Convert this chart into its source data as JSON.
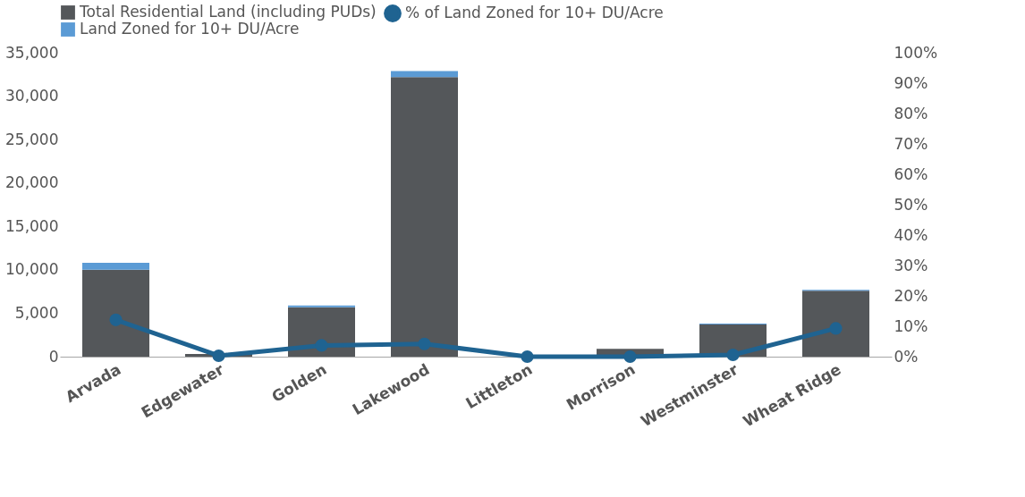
{
  "chart_data": {
    "type": "bar",
    "stacked": true,
    "legend": "top",
    "grid": false,
    "marker": "circle",
    "line_style": "solid",
    "categories": [
      "Arvada",
      "Edgewater",
      "Golden",
      "Lakewood",
      "Littleton",
      "Morrison",
      "Westminster",
      "Wheat Ridge"
    ],
    "series": [
      {
        "name": "Total Residential Land (including PUDs)",
        "color": "#54575a",
        "values": [
          10000,
          300,
          5700,
          32200,
          0,
          900,
          3700,
          7600
        ]
      },
      {
        "name": "Land Zoned for 10+ DU/Acre",
        "color": "#5b9bd5",
        "values": [
          800,
          null,
          200,
          700,
          0,
          0,
          100,
          100
        ]
      },
      {
        "name": "% of Land Zoned for 10+ DU/Acre",
        "type": "line",
        "axis": "y2",
        "color": "#1f6391",
        "values": [
          12.1,
          0.3,
          3.7,
          4.2,
          0,
          0,
          0.6,
          9.3
        ]
      }
    ],
    "ylim": [
      0,
      35000
    ],
    "yticks": [
      0,
      {
        "value": 5000,
        "label": "5,000"
      },
      {
        "value": 10000,
        "label": "10,000"
      },
      {
        "value": 15000,
        "label": "15,000"
      },
      {
        "value": 20000,
        "label": "20,000"
      },
      {
        "value": 25000,
        "label": "25,000"
      },
      {
        "value": 30000,
        "label": "30,000"
      },
      {
        "value": 35000,
        "label": "35,000"
      }
    ],
    "y2lim": [
      0,
      100
    ],
    "y2ticks": [
      {
        "value": 0,
        "label": "0%"
      },
      {
        "value": 10,
        "label": "10%"
      },
      {
        "value": 20,
        "label": "20%"
      },
      {
        "value": 30,
        "label": "30%"
      },
      {
        "value": 40,
        "label": "40%"
      },
      {
        "value": 50,
        "label": "50%"
      },
      {
        "value": 60,
        "label": "60%"
      },
      {
        "value": 70,
        "label": "70%"
      },
      {
        "value": 80,
        "label": "80%"
      },
      {
        "value": 90,
        "label": "90%"
      },
      {
        "value": 100,
        "label": "100%"
      }
    ]
  }
}
